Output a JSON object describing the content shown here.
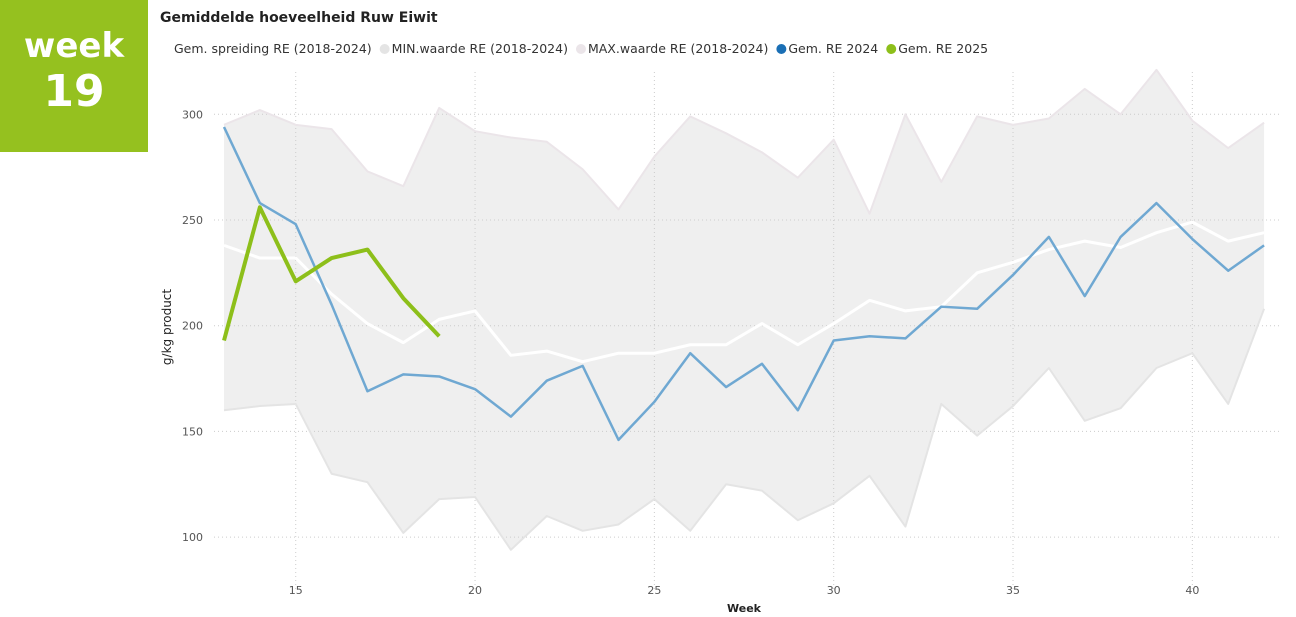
{
  "badge": {
    "label": "week",
    "number": "19"
  },
  "chart_data": {
    "type": "line",
    "title": "Gemiddelde hoeveelheid Ruw Eiwit",
    "x_label": "Week",
    "y_label": "g/kg product",
    "x": [
      13,
      14,
      15,
      16,
      17,
      18,
      19,
      20,
      21,
      22,
      23,
      24,
      25,
      26,
      27,
      28,
      29,
      30,
      31,
      32,
      33,
      34,
      35,
      36,
      37,
      38,
      39,
      40,
      41,
      42
    ],
    "xlim": [
      13,
      42.5
    ],
    "xticks": [
      15,
      20,
      25,
      30,
      35,
      40
    ],
    "ylim": [
      75,
      320
    ],
    "yticks": [
      100,
      150,
      200,
      250,
      300
    ],
    "grid": true,
    "series": [
      {
        "name": "Gem. spreiding RE (2018-2024)",
        "color": "#ffffff",
        "values": [
          238,
          232,
          232,
          215,
          201,
          192,
          203,
          207,
          186,
          188,
          183,
          187,
          187,
          191,
          191,
          201,
          191,
          201,
          212,
          207,
          209,
          225,
          230,
          236,
          240,
          237,
          244,
          249,
          240,
          244
        ]
      },
      {
        "name": "MIN.waarde RE (2018-2024)",
        "color": "#e4e4e4",
        "values": [
          160,
          162,
          163,
          130,
          126,
          102,
          118,
          119,
          94,
          110,
          103,
          106,
          118,
          103,
          125,
          122,
          108,
          116,
          129,
          105,
          163,
          148,
          162,
          180,
          155,
          161,
          180,
          187,
          163,
          208
        ]
      },
      {
        "name": "MAX.waarde RE (2018-2024)",
        "color": "#ebe5e9",
        "values": [
          295,
          302,
          295,
          293,
          273,
          266,
          303,
          292,
          289,
          287,
          274,
          255,
          280,
          299,
          291,
          282,
          270,
          288,
          253,
          300,
          268,
          299,
          295,
          298,
          312,
          300,
          321,
          297,
          284,
          296
        ]
      },
      {
        "name": "Gem. RE 2024",
        "color": "#6fa8d2",
        "values": [
          294,
          258,
          248,
          210,
          169,
          177,
          176,
          170,
          157,
          174,
          181,
          146,
          164,
          187,
          171,
          182,
          160,
          193,
          195,
          194,
          209,
          208,
          224,
          242,
          214,
          242,
          258,
          241,
          226,
          238
        ]
      },
      {
        "name": "Gem. RE 2025",
        "color": "#8dbf1a",
        "values": [
          193,
          256,
          221,
          232,
          236,
          213,
          195,
          null,
          null,
          null,
          null,
          null,
          null,
          null,
          null,
          null,
          null,
          null,
          null,
          null,
          null,
          null,
          null,
          null,
          null,
          null,
          null,
          null,
          null,
          null
        ]
      }
    ]
  }
}
